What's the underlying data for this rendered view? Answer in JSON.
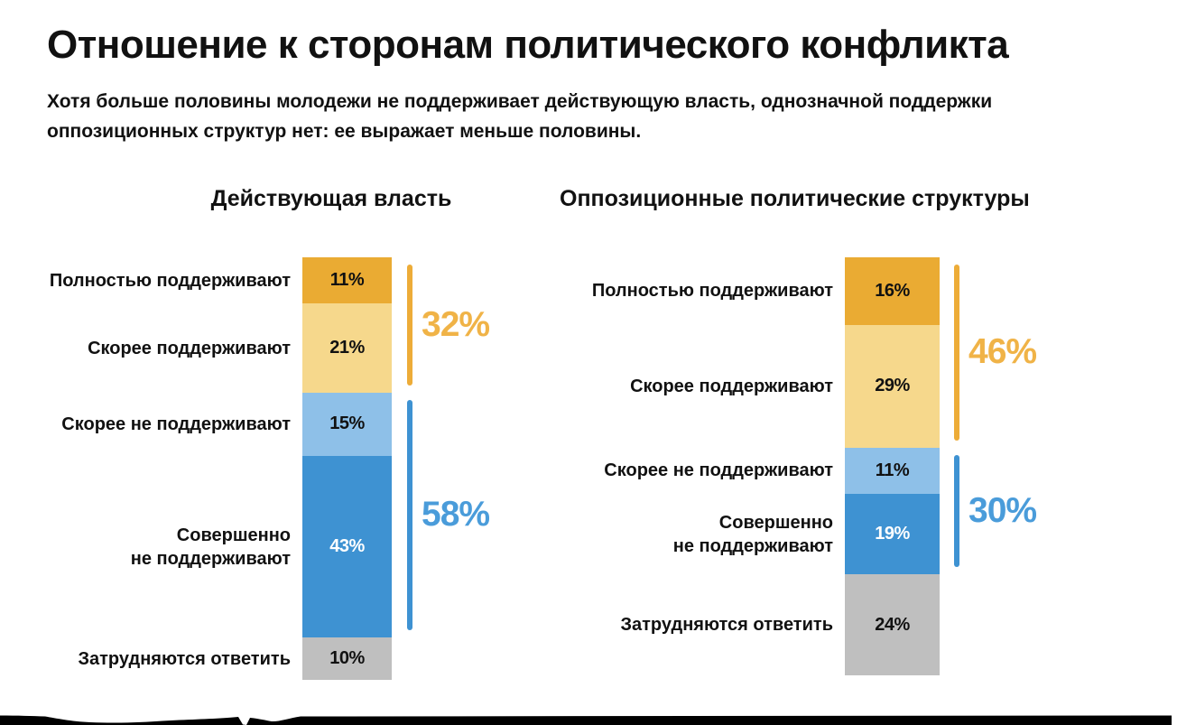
{
  "page": {
    "title": "Отношение к сторонам политического конфликта",
    "subtitle": "Хотя больше половины молодежи не поддерживает действующую власть, однозначной поддержки\nоппозиционных структур нет: ее выражает меньше половины."
  },
  "colors": {
    "fully_support": "#EAAB33",
    "rather_support": "#F6D88C",
    "rather_not_support": "#8EC0E8",
    "completely_not_support": "#3E92D2",
    "undecided": "#BFBFBF",
    "support_total_text": "#F0B347",
    "support_total_line": "#EDAC38",
    "not_support_total_text": "#4A9CDA",
    "not_support_total_line": "#3E92D2",
    "text": "#111111",
    "page_background": "#FFFFFF",
    "outside_background": "#000000"
  },
  "chart_data": [
    {
      "type": "bar",
      "stacked": true,
      "orientation": "vertical",
      "unit": "%",
      "title": "Действующая власть",
      "segments": [
        {
          "label": "Полностью поддерживают",
          "value": 11,
          "display": "11%",
          "color": "#EAAB33",
          "value_color": "#111111"
        },
        {
          "label": "Скорее поддерживают",
          "value": 21,
          "display": "21%",
          "color": "#F6D88C",
          "value_color": "#111111"
        },
        {
          "label": "Скорее не поддерживают",
          "value": 15,
          "display": "15%",
          "color": "#8EC0E8",
          "value_color": "#111111"
        },
        {
          "label": "Совершенно\nне поддерживают",
          "value": 43,
          "display": "43%",
          "color": "#3E92D2",
          "value_color": "#FFFFFF"
        },
        {
          "label": "Затрудняются ответить",
          "value": 10,
          "display": "10%",
          "color": "#BFBFBF",
          "value_color": "#111111"
        }
      ],
      "aggregates": [
        {
          "label": "32%",
          "value": 32,
          "covers": [
            0,
            1
          ],
          "text_color": "#F0B347",
          "line_color": "#EDAC38"
        },
        {
          "label": "58%",
          "value": 58,
          "covers": [
            2,
            3
          ],
          "text_color": "#4A9CDA",
          "line_color": "#3E92D2"
        }
      ]
    },
    {
      "type": "bar",
      "stacked": true,
      "orientation": "vertical",
      "unit": "%",
      "title": "Оппозиционные политические структуры",
      "segments": [
        {
          "label": "Полностью поддерживают",
          "value": 16,
          "display": "16%",
          "color": "#EAAB33",
          "value_color": "#111111"
        },
        {
          "label": "Скорее поддерживают",
          "value": 29,
          "display": "29%",
          "color": "#F6D88C",
          "value_color": "#111111"
        },
        {
          "label": "Скорее не поддерживают",
          "value": 11,
          "display": "11%",
          "color": "#8EC0E8",
          "value_color": "#111111"
        },
        {
          "label": "Совершенно\nне поддерживают",
          "value": 19,
          "display": "19%",
          "color": "#3E92D2",
          "value_color": "#FFFFFF"
        },
        {
          "label": "Затрудняются ответить",
          "value": 24,
          "display": "24%",
          "color": "#BFBFBF",
          "value_color": "#111111"
        }
      ],
      "aggregates": [
        {
          "label": "46%",
          "value": 46,
          "covers": [
            0,
            1
          ],
          "text_color": "#F0B347",
          "line_color": "#EDAC38"
        },
        {
          "label": "30%",
          "value": 30,
          "covers": [
            2,
            3
          ],
          "text_color": "#4A9CDA",
          "line_color": "#3E92D2"
        }
      ]
    }
  ]
}
